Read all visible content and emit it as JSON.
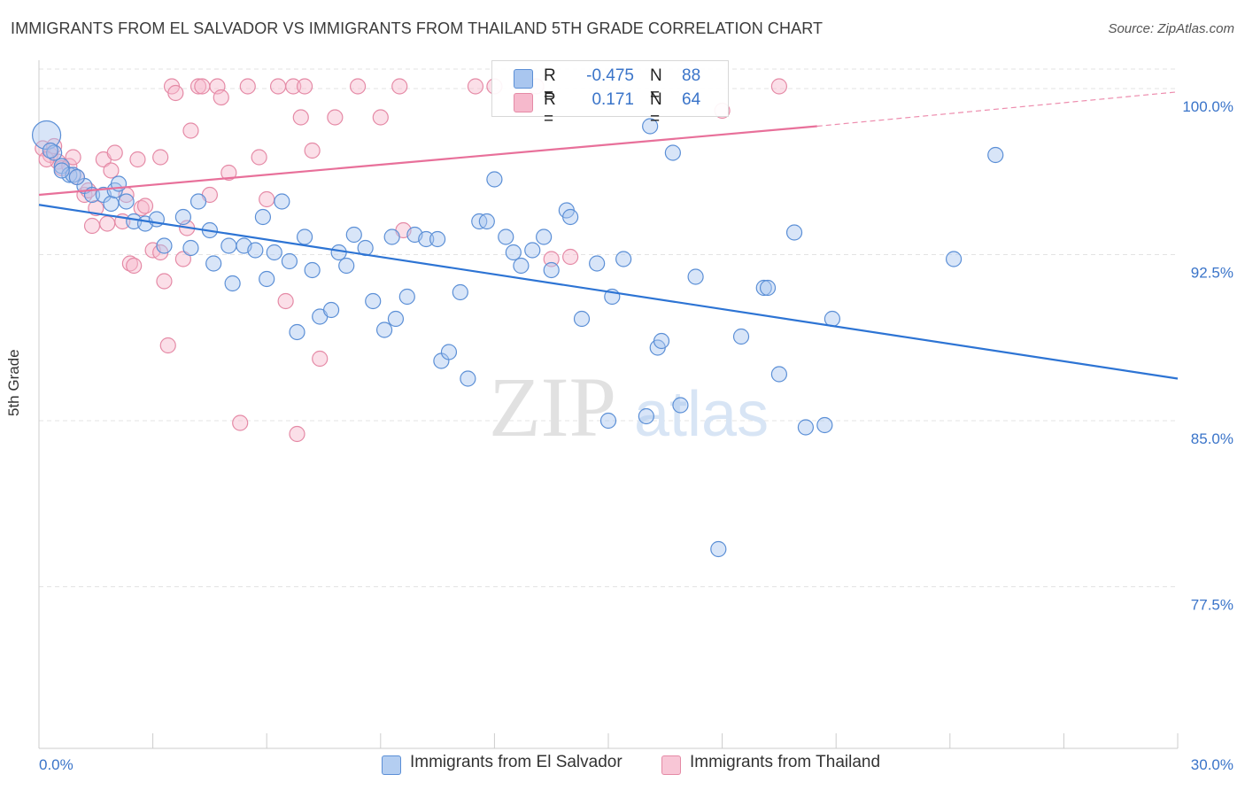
{
  "header": {
    "title": "IMMIGRANTS FROM EL SALVADOR VS IMMIGRANTS FROM THAILAND 5TH GRADE CORRELATION CHART",
    "source": "Source: ZipAtlas.com"
  },
  "watermark": {
    "zip": "ZIP",
    "atlas": "atlas"
  },
  "legend": {
    "r_label": "R =",
    "n_label": "N =",
    "rows": [
      {
        "r": "-0.475",
        "n": "88",
        "fill": "#a9c6ef",
        "stroke": "#5b8fd6"
      },
      {
        "r": "0.171",
        "n": "64",
        "fill": "#f6b9cc",
        "stroke": "#e58aa6"
      }
    ]
  },
  "bottom_legend": {
    "items": [
      {
        "label": "Immigrants from El Salvador",
        "fill": "#b4cef1",
        "stroke": "#5b8fd6"
      },
      {
        "label": "Immigrants from Thailand",
        "fill": "#f8c6d6",
        "stroke": "#e58aa6"
      }
    ]
  },
  "chart_data": {
    "type": "scatter",
    "title": "IMMIGRANTS FROM EL SALVADOR VS IMMIGRANTS FROM THAILAND 5TH GRADE CORRELATION CHART",
    "xlabel": "",
    "ylabel": "5th Grade",
    "xlim": [
      0,
      30
    ],
    "ylim": [
      70.2,
      101.2
    ],
    "x_tick_labels": [
      "0.0%",
      "30.0%"
    ],
    "y_ticks": [
      100.0,
      92.5,
      85.0,
      77.5
    ],
    "y_tick_labels": [
      "100.0%",
      "92.5%",
      "85.0%",
      "77.5%"
    ],
    "grid": "horizontal dashed",
    "colors": {
      "blue_fill": "#a9c6ef",
      "blue_stroke": "#5b8fd6",
      "blue_line": "#2d74d4",
      "pink_fill": "#f6b9cc",
      "pink_stroke": "#e58aa6",
      "pink_line": "#e8709a",
      "tick_label": "#3a74c9"
    },
    "series": [
      {
        "name": "Immigrants from El Salvador",
        "color": "blue",
        "points": [
          [
            0.2,
            97.9
          ],
          [
            0.4,
            97.1
          ],
          [
            0.6,
            96.5
          ],
          [
            0.8,
            96.1
          ],
          [
            0.9,
            96.1
          ],
          [
            1.2,
            95.6
          ],
          [
            1.4,
            95.2
          ],
          [
            1.7,
            95.2
          ],
          [
            1.9,
            94.8
          ],
          [
            2.0,
            95.4
          ],
          [
            2.1,
            95.7
          ],
          [
            2.3,
            94.9
          ],
          [
            2.5,
            94.0
          ],
          [
            2.8,
            93.9
          ],
          [
            3.1,
            94.1
          ],
          [
            3.3,
            92.9
          ],
          [
            3.8,
            94.2
          ],
          [
            4.0,
            92.8
          ],
          [
            4.2,
            94.9
          ],
          [
            4.5,
            93.6
          ],
          [
            4.6,
            92.1
          ],
          [
            5.0,
            92.9
          ],
          [
            5.1,
            91.2
          ],
          [
            5.4,
            92.9
          ],
          [
            5.7,
            92.7
          ],
          [
            5.9,
            94.2
          ],
          [
            6.0,
            91.4
          ],
          [
            6.2,
            92.6
          ],
          [
            6.4,
            94.9
          ],
          [
            6.6,
            92.2
          ],
          [
            6.8,
            89.0
          ],
          [
            7.0,
            93.3
          ],
          [
            7.2,
            91.8
          ],
          [
            7.4,
            89.7
          ],
          [
            7.7,
            90.0
          ],
          [
            7.9,
            92.6
          ],
          [
            8.1,
            92.0
          ],
          [
            8.3,
            93.4
          ],
          [
            8.6,
            92.8
          ],
          [
            8.8,
            90.4
          ],
          [
            9.1,
            89.1
          ],
          [
            9.3,
            93.3
          ],
          [
            9.4,
            89.6
          ],
          [
            9.7,
            90.6
          ],
          [
            9.9,
            93.4
          ],
          [
            10.2,
            93.2
          ],
          [
            10.5,
            93.2
          ],
          [
            10.6,
            87.7
          ],
          [
            10.8,
            88.1
          ],
          [
            11.1,
            90.8
          ],
          [
            11.3,
            86.9
          ],
          [
            11.6,
            94.0
          ],
          [
            11.8,
            94.0
          ],
          [
            12.0,
            95.9
          ],
          [
            12.3,
            93.3
          ],
          [
            12.5,
            92.6
          ],
          [
            12.7,
            92.0
          ],
          [
            13.0,
            92.7
          ],
          [
            13.3,
            93.3
          ],
          [
            13.5,
            91.8
          ],
          [
            13.9,
            94.5
          ],
          [
            14.0,
            94.2
          ],
          [
            14.3,
            89.6
          ],
          [
            14.7,
            92.1
          ],
          [
            15.0,
            85.0
          ],
          [
            15.1,
            90.6
          ],
          [
            15.4,
            92.3
          ],
          [
            16.0,
            85.2
          ],
          [
            16.1,
            98.3
          ],
          [
            16.3,
            88.3
          ],
          [
            16.4,
            88.6
          ],
          [
            16.7,
            97.1
          ],
          [
            16.9,
            85.7
          ],
          [
            17.3,
            91.5
          ],
          [
            17.9,
            79.2
          ],
          [
            18.5,
            88.8
          ],
          [
            19.1,
            91.0
          ],
          [
            19.2,
            91.0
          ],
          [
            19.5,
            87.1
          ],
          [
            19.9,
            93.5
          ],
          [
            20.2,
            84.7
          ],
          [
            20.7,
            84.8
          ],
          [
            20.9,
            89.6
          ],
          [
            24.1,
            92.3
          ],
          [
            25.2,
            97.0
          ],
          [
            0.3,
            97.2
          ],
          [
            0.6,
            96.3
          ],
          [
            1.0,
            96.0
          ]
        ],
        "trend": {
          "x": [
            0,
            30
          ],
          "y": [
            94.75,
            86.9
          ]
        }
      },
      {
        "name": "Immigrants from Thailand",
        "color": "pink",
        "points": [
          [
            0.1,
            97.3
          ],
          [
            0.3,
            97.0
          ],
          [
            0.5,
            96.7
          ],
          [
            0.6,
            96.4
          ],
          [
            0.8,
            96.5
          ],
          [
            1.0,
            96.0
          ],
          [
            1.2,
            95.2
          ],
          [
            1.4,
            93.8
          ],
          [
            1.5,
            94.6
          ],
          [
            1.7,
            96.8
          ],
          [
            1.8,
            93.9
          ],
          [
            1.9,
            96.3
          ],
          [
            2.0,
            97.1
          ],
          [
            2.2,
            94.0
          ],
          [
            2.3,
            95.2
          ],
          [
            2.4,
            92.1
          ],
          [
            2.5,
            92.0
          ],
          [
            2.6,
            96.8
          ],
          [
            2.7,
            94.6
          ],
          [
            2.8,
            94.7
          ],
          [
            3.0,
            92.7
          ],
          [
            3.2,
            92.6
          ],
          [
            3.3,
            91.3
          ],
          [
            3.4,
            88.4
          ],
          [
            3.5,
            100.1
          ],
          [
            3.6,
            99.8
          ],
          [
            3.8,
            92.3
          ],
          [
            3.9,
            93.7
          ],
          [
            4.0,
            98.1
          ],
          [
            4.2,
            100.1
          ],
          [
            4.3,
            100.1
          ],
          [
            4.5,
            95.2
          ],
          [
            4.7,
            100.1
          ],
          [
            4.8,
            99.6
          ],
          [
            5.0,
            96.2
          ],
          [
            5.3,
            84.9
          ],
          [
            5.5,
            100.1
          ],
          [
            5.8,
            96.9
          ],
          [
            6.0,
            95.0
          ],
          [
            6.3,
            100.1
          ],
          [
            6.5,
            90.4
          ],
          [
            6.7,
            100.1
          ],
          [
            6.8,
            84.4
          ],
          [
            7.0,
            100.1
          ],
          [
            7.2,
            97.2
          ],
          [
            7.4,
            87.8
          ],
          [
            7.8,
            98.7
          ],
          [
            8.4,
            100.1
          ],
          [
            9.0,
            98.7
          ],
          [
            9.5,
            100.1
          ],
          [
            9.6,
            93.6
          ],
          [
            11.5,
            100.1
          ],
          [
            12.0,
            100.1
          ],
          [
            13.1,
            100.1
          ],
          [
            13.5,
            92.3
          ],
          [
            14.0,
            92.4
          ],
          [
            18.0,
            99.0
          ],
          [
            19.5,
            100.1
          ],
          [
            0.4,
            97.4
          ],
          [
            0.9,
            96.9
          ],
          [
            1.3,
            95.4
          ],
          [
            3.2,
            96.9
          ],
          [
            6.9,
            98.7
          ],
          [
            0.2,
            96.8
          ]
        ],
        "trend": {
          "x": [
            0,
            20.5
          ],
          "y": [
            95.2,
            98.3
          ]
        },
        "trend_dashed": {
          "x": [
            20.5,
            30
          ],
          "y": [
            98.3,
            99.85
          ]
        }
      }
    ]
  }
}
